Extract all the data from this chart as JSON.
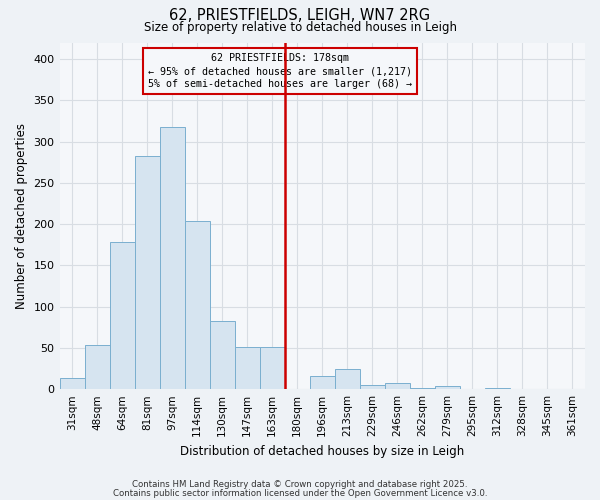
{
  "title": "62, PRIESTFIELDS, LEIGH, WN7 2RG",
  "subtitle": "Size of property relative to detached houses in Leigh",
  "xlabel": "Distribution of detached houses by size in Leigh",
  "ylabel": "Number of detached properties",
  "bar_labels": [
    "31sqm",
    "48sqm",
    "64sqm",
    "81sqm",
    "97sqm",
    "114sqm",
    "130sqm",
    "147sqm",
    "163sqm",
    "180sqm",
    "196sqm",
    "213sqm",
    "229sqm",
    "246sqm",
    "262sqm",
    "279sqm",
    "295sqm",
    "312sqm",
    "328sqm",
    "345sqm",
    "361sqm"
  ],
  "bar_values": [
    14,
    53,
    178,
    283,
    318,
    204,
    83,
    51,
    51,
    0,
    16,
    24,
    5,
    8,
    2,
    4,
    0,
    1,
    0,
    0,
    0
  ],
  "bar_color": "#d6e4f0",
  "bar_edge_color": "#7aafcf",
  "vline_color": "#cc0000",
  "annotation_title": "62 PRIESTFIELDS: 178sqm",
  "annotation_line1": "← 95% of detached houses are smaller (1,217)",
  "annotation_line2": "5% of semi-detached houses are larger (68) →",
  "annotation_box_color": "#cc0000",
  "ylim": [
    0,
    420
  ],
  "yticks": [
    0,
    50,
    100,
    150,
    200,
    250,
    300,
    350,
    400
  ],
  "footnote1": "Contains HM Land Registry data © Crown copyright and database right 2025.",
  "footnote2": "Contains public sector information licensed under the Open Government Licence v3.0.",
  "bg_color": "#eef2f6",
  "grid_color": "#d8dde3",
  "plot_bg_color": "#f5f7fa"
}
